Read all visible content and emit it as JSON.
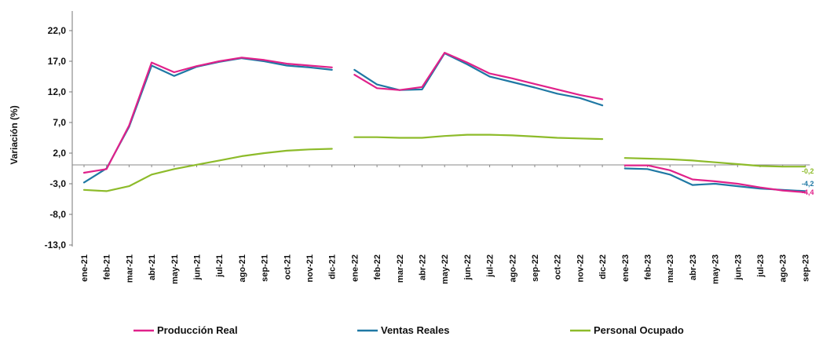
{
  "chart_data": {
    "type": "line",
    "title": "",
    "xlabel": "",
    "ylabel": "Variación (%)",
    "ylim": [
      -13.0,
      22.0
    ],
    "yticks": [
      "22,0",
      "17,0",
      "12,0",
      "7,0",
      "2,0",
      "-3,0",
      "-8,0",
      "-13,0"
    ],
    "ytick_values": [
      22,
      17,
      12,
      7,
      2,
      -3,
      -8,
      -13
    ],
    "categories": [
      "ene-21",
      "feb-21",
      "mar-21",
      "abr-21",
      "may-21",
      "jun-21",
      "jul-21",
      "ago-21",
      "sep-21",
      "oct-21",
      "nov-21",
      "dic-21",
      "ene-22",
      "feb-22",
      "mar-22",
      "abr-22",
      "may-22",
      "jun-22",
      "jul-22",
      "ago-22",
      "sep-22",
      "oct-22",
      "nov-22",
      "dic-22",
      "ene-23",
      "feb-23",
      "mar-23",
      "abr-23",
      "may-23",
      "jun-23",
      "jul-23",
      "ago-23",
      "sep-23"
    ],
    "grid": false,
    "legend_position": "bottom",
    "series": [
      {
        "name": "Producción Real",
        "color": "#e0218a",
        "values": [
          -1.2,
          -0.6,
          6.5,
          16.8,
          15.2,
          16.2,
          17.0,
          17.6,
          17.2,
          16.6,
          16.3,
          16.0,
          14.8,
          12.6,
          12.3,
          12.8,
          18.4,
          16.8,
          15.0,
          14.2,
          13.3,
          12.4,
          11.5,
          10.8,
          0.0,
          -0.0,
          -0.8,
          -2.3,
          -2.6,
          -3.0,
          -3.6,
          -4.1,
          -4.4
        ],
        "end_label": "-4,4"
      },
      {
        "name": "Ventas Reales",
        "color": "#1f78a4",
        "values": [
          -2.8,
          -0.5,
          6.3,
          16.3,
          14.6,
          16.1,
          16.9,
          17.5,
          17.0,
          16.3,
          16.0,
          15.6,
          15.6,
          13.2,
          12.3,
          12.4,
          18.3,
          16.5,
          14.5,
          13.6,
          12.7,
          11.7,
          11.0,
          9.8,
          -0.5,
          -0.6,
          -1.5,
          -3.2,
          -3.0,
          -3.4,
          -3.8,
          -4.0,
          -4.2
        ],
        "end_label": "-4,2"
      },
      {
        "name": "Personal Ocupado",
        "color": "#8dbb2a",
        "values": [
          -4.0,
          -4.2,
          -3.4,
          -1.5,
          -0.6,
          0.1,
          0.8,
          1.5,
          2.0,
          2.4,
          2.6,
          2.7,
          4.6,
          4.6,
          4.5,
          4.5,
          4.8,
          5.0,
          5.0,
          4.9,
          4.7,
          4.5,
          4.4,
          4.3,
          1.2,
          1.1,
          1.0,
          0.8,
          0.5,
          0.2,
          -0.1,
          -0.2,
          -0.2
        ],
        "end_label": "-0,2"
      }
    ],
    "segments": [
      [
        0,
        11
      ],
      [
        12,
        23
      ],
      [
        24,
        32
      ]
    ]
  }
}
